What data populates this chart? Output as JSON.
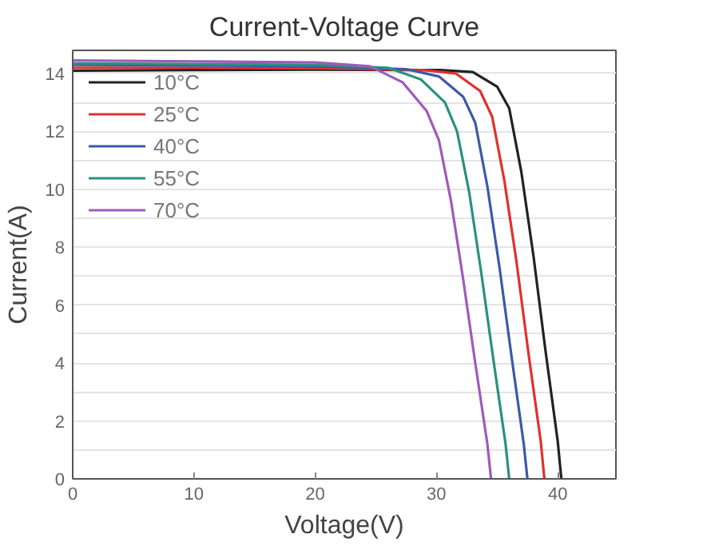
{
  "chart_data": {
    "type": "line",
    "title": "Current-Voltage Curve",
    "xlabel": "Voltage(V)",
    "ylabel": "Current(A)",
    "xlim": [
      0,
      44.8
    ],
    "xticks": [
      0,
      10,
      20,
      30,
      40
    ],
    "ylim": [
      0,
      14.8
    ],
    "yticks": [
      0,
      {
        "value": 1,
        "label": null
      },
      2,
      {
        "value": 3,
        "label": null
      },
      4,
      {
        "value": 5,
        "label": null
      },
      6,
      {
        "value": 7,
        "label": null
      },
      8,
      {
        "value": 9,
        "label": null
      },
      10,
      {
        "value": 11,
        "label": null
      },
      12,
      {
        "value": 13,
        "label": null
      },
      14
    ],
    "grid": "y",
    "legend": "top left",
    "line_style": "solid",
    "marker": "none",
    "series": [
      {
        "name": "10°C",
        "color": "#222222",
        "x": [
          0,
          10,
          20,
          30.3,
          33,
          35,
          36,
          37,
          38,
          39,
          40,
          40.3
        ],
        "values": [
          14.1,
          14.12,
          14.13,
          14.12,
          14.05,
          13.55,
          12.8,
          10.6,
          7.7,
          4.4,
          1.3,
          0
        ]
      },
      {
        "name": "25°C",
        "color": "#e03030",
        "x": [
          0,
          10,
          20,
          28.9,
          31.6,
          33.6,
          34.6,
          35.6,
          36.6,
          37.6,
          38.6,
          38.9
        ],
        "values": [
          14.2,
          14.2,
          14.18,
          14.12,
          14.0,
          13.4,
          12.5,
          10.3,
          7.5,
          4.3,
          1.3,
          0
        ]
      },
      {
        "name": "40°C",
        "color": "#3a5aa8",
        "x": [
          0,
          10,
          20,
          27.5,
          30.2,
          32.2,
          33.2,
          34.2,
          35.2,
          36.2,
          37.2,
          37.5
        ],
        "values": [
          14.3,
          14.28,
          14.25,
          14.15,
          13.9,
          13.2,
          12.3,
          10.1,
          7.3,
          4.2,
          1.2,
          0
        ]
      },
      {
        "name": "55°C",
        "color": "#2a9080",
        "x": [
          0,
          10,
          20,
          26,
          28.7,
          30.7,
          31.7,
          32.7,
          33.7,
          34.7,
          35.7,
          36
        ],
        "values": [
          14.35,
          14.33,
          14.3,
          14.2,
          13.8,
          13.0,
          12.0,
          9.9,
          7.1,
          4.1,
          1.2,
          0
        ]
      },
      {
        "name": "70°C",
        "color": "#a05aba",
        "x": [
          0,
          10,
          20,
          24.5,
          27.2,
          29.2,
          30.2,
          31.2,
          32.2,
          33.2,
          34.2,
          34.5
        ],
        "values": [
          14.45,
          14.42,
          14.38,
          14.25,
          13.7,
          12.7,
          11.7,
          9.6,
          6.9,
          4.0,
          1.2,
          0
        ]
      }
    ]
  }
}
